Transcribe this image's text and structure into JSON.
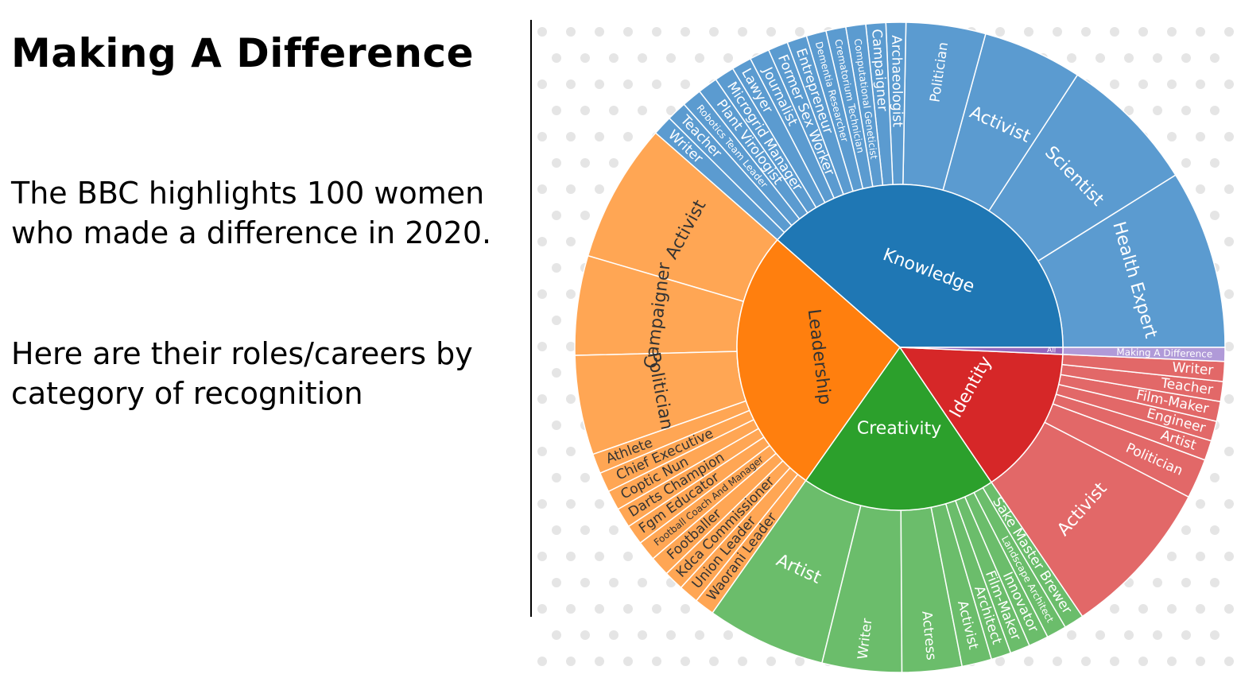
{
  "page": {
    "title": "Making A Difference",
    "paragraph_1": "The BBC highlights 100 women who made a difference in 2020.",
    "paragraph_2": "Here are their roles/careers by category of recognition"
  },
  "chart_data": {
    "type": "sunburst",
    "start_angle_deg": 0,
    "direction": "counterclockwise",
    "categories": [
      {
        "name": "Knowledge",
        "color": "#1f77b4",
        "child_color": "#5b9bd0",
        "children": [
          {
            "name": "Health Expert",
            "value": 9
          },
          {
            "name": "Scientist",
            "value": 7
          },
          {
            "name": "Activist",
            "value": 5
          },
          {
            "name": "Politician",
            "value": 4
          },
          {
            "name": "Archaeologist",
            "value": 1
          },
          {
            "name": "Campaigner",
            "value": 1
          },
          {
            "name": "Computational Geneticist",
            "value": 1
          },
          {
            "name": "Crematorium Technician",
            "value": 1
          },
          {
            "name": "Dementia Researcher",
            "value": 1
          },
          {
            "name": "Entrepreneur",
            "value": 1
          },
          {
            "name": "Former Sex Worker",
            "value": 1
          },
          {
            "name": "Journalist",
            "value": 1
          },
          {
            "name": "Lawyer",
            "value": 1
          },
          {
            "name": "Microgrid Manager",
            "value": 1
          },
          {
            "name": "Plant Virologist",
            "value": 1
          },
          {
            "name": "Robotics Team Leader",
            "value": 1
          },
          {
            "name": "Teacher",
            "value": 1
          },
          {
            "name": "Writer",
            "value": 1
          }
        ]
      },
      {
        "name": "Leadership",
        "color": "#ff7f0e",
        "child_color": "#ffa654",
        "children": [
          {
            "name": "Activist",
            "value": 7
          },
          {
            "name": "Campaigner",
            "value": 5
          },
          {
            "name": "Politician",
            "value": 5
          },
          {
            "name": "Athlete",
            "value": 1
          },
          {
            "name": "Chief Executive",
            "value": 1
          },
          {
            "name": "Coptic Nun",
            "value": 1
          },
          {
            "name": "Darts Champion",
            "value": 1
          },
          {
            "name": "Fgm Educator",
            "value": 1
          },
          {
            "name": "Football Coach And Manager",
            "value": 1
          },
          {
            "name": "Footballer",
            "value": 1
          },
          {
            "name": "Kdca Commissioner",
            "value": 1
          },
          {
            "name": "Union Leader",
            "value": 1
          },
          {
            "name": "Waorani Leader",
            "value": 1
          }
        ]
      },
      {
        "name": "Creativity",
        "color": "#2ca02c",
        "child_color": "#6bbd6b",
        "children": [
          {
            "name": "Artist",
            "value": 6
          },
          {
            "name": "Writer",
            "value": 4
          },
          {
            "name": "Actress",
            "value": 3
          },
          {
            "name": "Activist",
            "value": 1.5
          },
          {
            "name": "Architect",
            "value": 1
          },
          {
            "name": "Film-Maker",
            "value": 1
          },
          {
            "name": "Innovator",
            "value": 1
          },
          {
            "name": "Landscape Architect",
            "value": 1
          },
          {
            "name": "Sake Master Brewer",
            "value": 1
          }
        ]
      },
      {
        "name": "Identity",
        "color": "#d62728",
        "child_color": "#e26868",
        "children": [
          {
            "name": "Activist",
            "value": 8
          },
          {
            "name": "Politician",
            "value": 2
          },
          {
            "name": "Artist",
            "value": 1
          },
          {
            "name": "Engineer",
            "value": 1
          },
          {
            "name": "Film-Maker",
            "value": 1
          },
          {
            "name": "Teacher",
            "value": 1
          },
          {
            "name": "Writer",
            "value": 1
          }
        ]
      },
      {
        "name": "All",
        "color": "#9467bd",
        "child_color": "#b09ad8",
        "children": [
          {
            "name": "Making A Difference",
            "value": 0.7
          }
        ]
      }
    ]
  }
}
